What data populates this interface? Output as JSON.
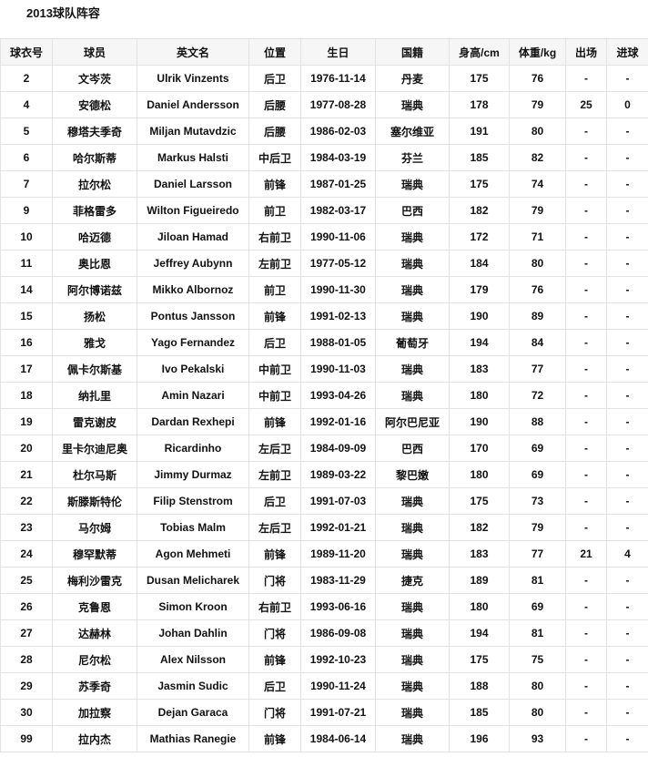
{
  "title": "2013球队阵容",
  "table": {
    "headers": [
      "球衣号",
      "球员",
      "英文名",
      "位置",
      "生日",
      "国籍",
      "身高/cm",
      "体重/kg",
      "出场",
      "进球"
    ],
    "rows": [
      [
        "2",
        "文岑茨",
        "Ulrik Vinzents",
        "后卫",
        "1976-11-14",
        "丹麦",
        "175",
        "76",
        "-",
        "-"
      ],
      [
        "4",
        "安德松",
        "Daniel Andersson",
        "后腰",
        "1977-08-28",
        "瑞典",
        "178",
        "79",
        "25",
        "0"
      ],
      [
        "5",
        "穆塔夫季奇",
        "Miljan Mutavdzic",
        "后腰",
        "1986-02-03",
        "塞尔维亚",
        "191",
        "80",
        "-",
        "-"
      ],
      [
        "6",
        "哈尔斯蒂",
        "Markus Halsti",
        "中后卫",
        "1984-03-19",
        "芬兰",
        "185",
        "82",
        "-",
        "-"
      ],
      [
        "7",
        "拉尔松",
        "Daniel Larsson",
        "前锋",
        "1987-01-25",
        "瑞典",
        "175",
        "74",
        "-",
        "-"
      ],
      [
        "9",
        "菲格雷多",
        "Wilton Figueiredo",
        "前卫",
        "1982-03-17",
        "巴西",
        "182",
        "79",
        "-",
        "-"
      ],
      [
        "10",
        "哈迈德",
        "Jiloan Hamad",
        "右前卫",
        "1990-11-06",
        "瑞典",
        "172",
        "71",
        "-",
        "-"
      ],
      [
        "11",
        "奥比恩",
        "Jeffrey Aubynn",
        "左前卫",
        "1977-05-12",
        "瑞典",
        "184",
        "80",
        "-",
        "-"
      ],
      [
        "14",
        "阿尔博诺兹",
        "Mikko Albornoz",
        "前卫",
        "1990-11-30",
        "瑞典",
        "179",
        "76",
        "-",
        "-"
      ],
      [
        "15",
        "扬松",
        "Pontus Jansson",
        "前锋",
        "1991-02-13",
        "瑞典",
        "190",
        "89",
        "-",
        "-"
      ],
      [
        "16",
        "雅戈",
        "Yago Fernandez",
        "后卫",
        "1988-01-05",
        "葡萄牙",
        "194",
        "84",
        "-",
        "-"
      ],
      [
        "17",
        "佩卡尔斯基",
        "Ivo Pekalski",
        "中前卫",
        "1990-11-03",
        "瑞典",
        "183",
        "77",
        "-",
        "-"
      ],
      [
        "18",
        "纳扎里",
        "Amin Nazari",
        "中前卫",
        "1993-04-26",
        "瑞典",
        "180",
        "72",
        "-",
        "-"
      ],
      [
        "19",
        "雷克谢皮",
        "Dardan Rexhepi",
        "前锋",
        "1992-01-16",
        "阿尔巴尼亚",
        "190",
        "88",
        "-",
        "-"
      ],
      [
        "20",
        "里卡尔迪尼奥",
        "Ricardinho",
        "左后卫",
        "1984-09-09",
        "巴西",
        "170",
        "69",
        "-",
        "-"
      ],
      [
        "21",
        "杜尔马斯",
        "Jimmy Durmaz",
        "左前卫",
        "1989-03-22",
        "黎巴嫩",
        "180",
        "69",
        "-",
        "-"
      ],
      [
        "22",
        "斯滕斯特伦",
        "Filip Stenstrom",
        "后卫",
        "1991-07-03",
        "瑞典",
        "175",
        "73",
        "-",
        "-"
      ],
      [
        "23",
        "马尔姆",
        "Tobias Malm",
        "左后卫",
        "1992-01-21",
        "瑞典",
        "182",
        "79",
        "-",
        "-"
      ],
      [
        "24",
        "穆罕默蒂",
        "Agon Mehmeti",
        "前锋",
        "1989-11-20",
        "瑞典",
        "183",
        "77",
        "21",
        "4"
      ],
      [
        "25",
        "梅利沙雷克",
        "Dusan Melicharek",
        "门将",
        "1983-11-29",
        "捷克",
        "189",
        "81",
        "-",
        "-"
      ],
      [
        "26",
        "克鲁恩",
        "Simon Kroon",
        "右前卫",
        "1993-06-16",
        "瑞典",
        "180",
        "69",
        "-",
        "-"
      ],
      [
        "27",
        "达赫林",
        "Johan Dahlin",
        "门将",
        "1986-09-08",
        "瑞典",
        "194",
        "81",
        "-",
        "-"
      ],
      [
        "28",
        "尼尔松",
        "Alex Nilsson",
        "前锋",
        "1992-10-23",
        "瑞典",
        "175",
        "75",
        "-",
        "-"
      ],
      [
        "29",
        "苏季奇",
        "Jasmin Sudic",
        "后卫",
        "1990-11-24",
        "瑞典",
        "188",
        "80",
        "-",
        "-"
      ],
      [
        "30",
        "加拉察",
        "Dejan Garaca",
        "门将",
        "1991-07-21",
        "瑞典",
        "185",
        "80",
        "-",
        "-"
      ],
      [
        "99",
        "拉内杰",
        "Mathias Ranegie",
        "前锋",
        "1984-06-14",
        "瑞典",
        "196",
        "93",
        "-",
        "-"
      ]
    ]
  }
}
